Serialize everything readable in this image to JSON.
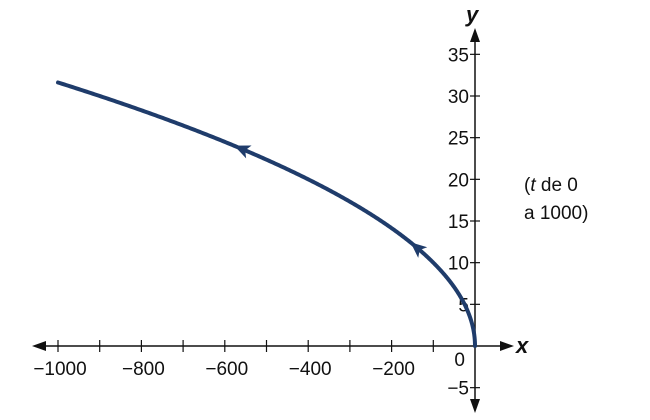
{
  "chart_data": {
    "type": "line",
    "parametric": {
      "x": "-t",
      "y": "sqrt(t)",
      "t_range": [
        0,
        1000
      ]
    },
    "xlabel": "x",
    "ylabel": "y",
    "xlim": [
      -1000,
      0
    ],
    "ylim": [
      -5,
      35
    ],
    "x_ticks": [
      -1000,
      -900,
      -800,
      -700,
      -600,
      -500,
      -400,
      -300,
      -200,
      -100
    ],
    "x_tick_labels": [
      {
        "value": -1000,
        "label": "−1000"
      },
      {
        "value": -800,
        "label": "−800"
      },
      {
        "value": -600,
        "label": "−600"
      },
      {
        "value": -400,
        "label": "−400"
      },
      {
        "value": -200,
        "label": "−200"
      }
    ],
    "origin_label": "0",
    "y_tick_labels": [
      {
        "value": 35,
        "label": "35"
      },
      {
        "value": 30,
        "label": "30"
      },
      {
        "value": 25,
        "label": "25"
      },
      {
        "value": 20,
        "label": "20"
      },
      {
        "value": 15,
        "label": "15"
      },
      {
        "value": 10,
        "label": "10"
      },
      {
        "value": 5,
        "label": "5"
      },
      {
        "value": -5,
        "label": "−5"
      }
    ],
    "direction_arrows_t": [
      140,
      560
    ],
    "annotation": {
      "line1_prefix": "(",
      "line1_var": "t",
      "line1_rest": " de 0",
      "line2": "a 1000)"
    },
    "curve_color": "#1f3c6b",
    "grid": false
  }
}
